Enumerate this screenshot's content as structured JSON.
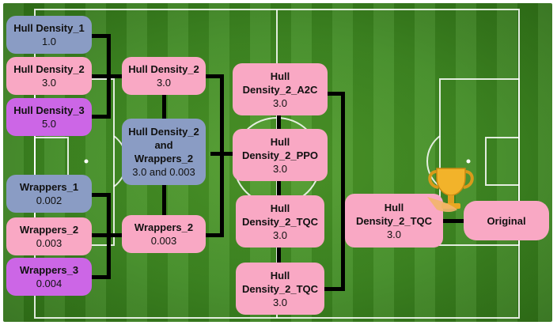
{
  "colors": {
    "pink": "#f9a8c4",
    "blue": "#8a9cc4",
    "purple": "#cc66e6",
    "connector": "#000000",
    "field": "#3f8a22"
  },
  "icons": [
    "trophy-icon"
  ],
  "round1": [
    {
      "title": "Hull Density_1",
      "value": "1.0",
      "color": "blue"
    },
    {
      "title": "Hull Density_2",
      "value": "3.0",
      "color": "pink"
    },
    {
      "title": "Hull Density_3",
      "value": "5.0",
      "color": "purple"
    },
    {
      "title": "Wrappers_1",
      "value": "0.002",
      "color": "blue"
    },
    {
      "title": "Wrappers_2",
      "value": "0.003",
      "color": "pink"
    },
    {
      "title": "Wrappers_3",
      "value": "0.004",
      "color": "purple"
    }
  ],
  "round2": [
    {
      "title": "Hull Density_2",
      "value": "3.0",
      "color": "pink"
    },
    {
      "title_lines": [
        "Hull Density_2",
        "and",
        "Wrappers_2"
      ],
      "value": "3.0 and 0.003",
      "color": "blue"
    },
    {
      "title": "Wrappers_2",
      "value": "0.003",
      "color": "pink"
    }
  ],
  "round3": [
    {
      "title_lines": [
        "Hull",
        "Density_2_A2C"
      ],
      "value": "3.0",
      "color": "pink"
    },
    {
      "title_lines": [
        "Hull",
        "Density_2_PPO"
      ],
      "value": "3.0",
      "color": "pink"
    },
    {
      "title_lines": [
        "Hull",
        "Density_2_TQC"
      ],
      "value": "3.0",
      "color": "pink"
    },
    {
      "title_lines": [
        "Hull",
        "Density_2_TQC"
      ],
      "value": "3.0",
      "color": "pink"
    }
  ],
  "round4": {
    "title_lines": [
      "Hull",
      "Density_2_TQC"
    ],
    "value": "3.0",
    "color": "pink"
  },
  "final": {
    "title": "Original",
    "color": "pink"
  }
}
